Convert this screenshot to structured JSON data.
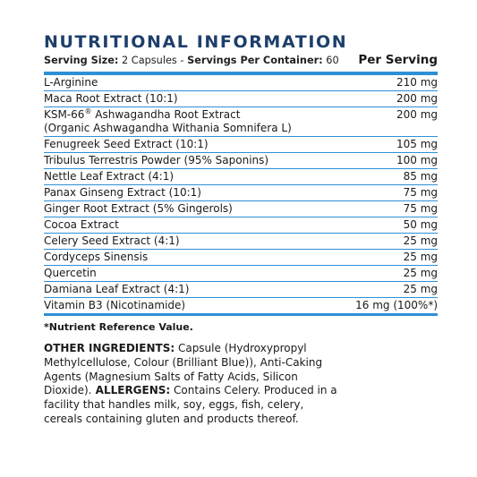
{
  "title": "NUTRITIONAL INFORMATION",
  "serving": {
    "size_label": "Serving Size:",
    "size_value": "2 Capsules",
    "separator": "-",
    "per_container_label": "Servings Per Container:",
    "per_container_value": "60"
  },
  "per_serving_label": "Per Serving",
  "rows": [
    {
      "name": "L-Arginine",
      "amount": "210 mg"
    },
    {
      "name": "Maca Root Extract (10:1)",
      "amount": "200 mg"
    },
    {
      "name": "KSM-66",
      "sup": "®",
      "name_rest": " Ashwagandha Root Extract",
      "line2": "(Organic Ashwagandha Withania Somnifera L)",
      "amount": "200 mg"
    },
    {
      "name": "Fenugreek Seed Extract (10:1)",
      "amount": "105 mg"
    },
    {
      "name": "Tribulus Terrestris Powder (95% Saponins)",
      "amount": "100 mg"
    },
    {
      "name": "Nettle Leaf Extract (4:1)",
      "amount": "85 mg"
    },
    {
      "name": "Panax Ginseng Extract (10:1)",
      "amount": "75 mg"
    },
    {
      "name": "Ginger Root Extract (5% Gingerols)",
      "amount": "75 mg"
    },
    {
      "name": "Cocoa Extract",
      "amount": "50 mg"
    },
    {
      "name": "Celery Seed Extract (4:1)",
      "amount": "25 mg"
    },
    {
      "name": "Cordyceps Sinensis",
      "amount": "25 mg"
    },
    {
      "name": "Quercetin",
      "amount": "25 mg"
    },
    {
      "name": "Damiana Leaf Extract (4:1)",
      "amount": "25 mg"
    },
    {
      "name": "Vitamin B3 (Nicotinamide)",
      "amount": "16 mg (100%*)"
    }
  ],
  "footnote": "*Nutrient Reference Value.",
  "other_ingredients": {
    "label": "OTHER INGREDIENTS:",
    "text": " Capsule (Hydroxypropyl Methylcellulose, Colour (Brilliant Blue)), Anti-Caking Agents (Magnesium Salts of Fatty Acids, Silicon Dioxide).",
    "allergens_label": " ALLERGENS:",
    "allergens_text": " Contains Celery. Produced in a facility that handles milk, soy, eggs, fish, celery, cereals containing gluten and products thereof."
  },
  "colors": {
    "title": "#1e3f6b",
    "rule": "#2f8fd6"
  }
}
